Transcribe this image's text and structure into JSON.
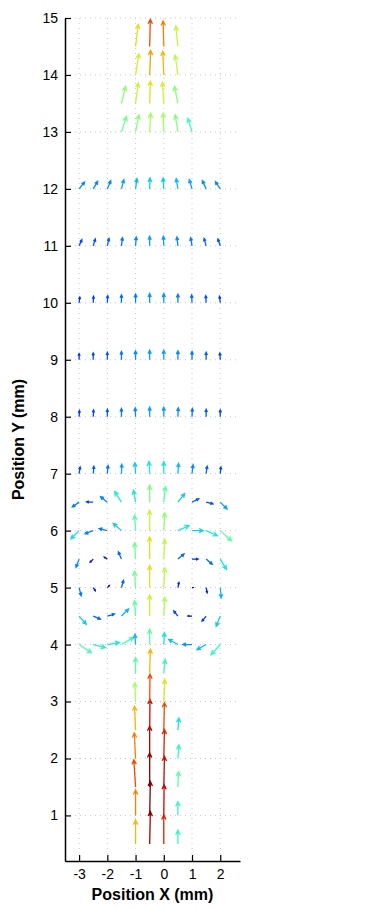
{
  "chart_data": {
    "type": "vector",
    "x_label": "Position X (mm)",
    "y_label": "Position Y (mm)",
    "xlim": [
      -3.5,
      2.7
    ],
    "ylim": [
      0.2,
      15
    ],
    "xticks": [
      -3,
      -2,
      -1,
      0,
      1,
      2
    ],
    "yticks": [
      1,
      2,
      3,
      4,
      5,
      6,
      7,
      8,
      9,
      10,
      11,
      12,
      13,
      14,
      15
    ],
    "grid": true,
    "x": [
      -1,
      -0.5,
      0,
      0.5,
      -1,
      -0.5,
      0,
      0.5,
      -1,
      -0.5,
      0,
      0.5,
      -1,
      -0.5,
      0,
      0.5,
      -1,
      -0.5,
      0,
      0.5,
      -1,
      -0.5,
      0,
      -1,
      -0.5,
      0,
      -3,
      -2.5,
      -2,
      -1.5,
      -1,
      -0.5,
      0,
      0.5,
      1,
      1.5,
      2,
      -3,
      -2.5,
      -2,
      -1.5,
      -1,
      -0.5,
      0,
      0.5,
      1,
      1.5,
      2,
      -3,
      -2.5,
      -2,
      -1.5,
      -1,
      -0.5,
      0,
      0.5,
      1,
      1.5,
      2,
      -3,
      -2.5,
      -2,
      -1.5,
      -1,
      -0.5,
      0,
      0.5,
      1,
      1.5,
      2,
      -3,
      -2.5,
      -2,
      -1.5,
      -1,
      -0.5,
      0,
      0.5,
      1,
      1.5,
      2,
      -3,
      -2.5,
      -2,
      -1.5,
      -1,
      -0.5,
      0,
      0.5,
      1,
      1.5,
      2,
      -3,
      -2.5,
      -2,
      -1.5,
      -1,
      -0.5,
      0,
      0.5,
      1,
      1.5,
      2,
      -3,
      -2.5,
      -2,
      -1.5,
      -1,
      -0.5,
      0,
      0.5,
      1,
      1.5,
      2,
      -3,
      -2.5,
      -2,
      -1.5,
      -1,
      -0.5,
      0,
      0.5,
      1,
      1.5,
      2,
      -3,
      -2.5,
      -2,
      -1.5,
      -1,
      -0.5,
      0,
      0.5,
      1,
      1.5,
      2,
      -3,
      -2.5,
      -2,
      -1.5,
      -1,
      -0.5,
      0,
      0.5,
      1,
      1.5,
      2,
      -3,
      -2.5,
      -2,
      -1.5,
      -1,
      -0.5,
      0,
      0.5,
      1,
      1.5,
      2,
      -1.5,
      -1,
      -0.5,
      0,
      0.5,
      1,
      -1.5,
      -1,
      -0.5,
      0,
      0.5,
      -1,
      -0.5,
      0,
      0.5,
      -1,
      -0.5,
      0,
      0.5
    ],
    "y": [
      0.5,
      0.5,
      0.5,
      0.5,
      1,
      1,
      1,
      1,
      1.5,
      1.5,
      1.5,
      1.5,
      2,
      2,
      2,
      2,
      2.5,
      2.5,
      2.5,
      2.5,
      3,
      3,
      3,
      3.5,
      3.5,
      3.5,
      4,
      4,
      4,
      4,
      4,
      4,
      4,
      4,
      4,
      4,
      4,
      4.5,
      4.5,
      4.5,
      4.5,
      4.5,
      4.5,
      4.5,
      4.5,
      4.5,
      4.5,
      4.5,
      5,
      5,
      5,
      5,
      5,
      5,
      5,
      5,
      5,
      5,
      5,
      5.5,
      5.5,
      5.5,
      5.5,
      5.5,
      5.5,
      5.5,
      5.5,
      5.5,
      5.5,
      5.5,
      6,
      6,
      6,
      6,
      6,
      6,
      6,
      6,
      6,
      6,
      6,
      6.5,
      6.5,
      6.5,
      6.5,
      6.5,
      6.5,
      6.5,
      6.5,
      6.5,
      6.5,
      6.5,
      7,
      7,
      7,
      7,
      7,
      7,
      7,
      7,
      7,
      7,
      7,
      8,
      8,
      8,
      8,
      8,
      8,
      8,
      8,
      8,
      8,
      8,
      9,
      9,
      9,
      9,
      9,
      9,
      9,
      9,
      9,
      9,
      9,
      10,
      10,
      10,
      10,
      10,
      10,
      10,
      10,
      10,
      10,
      10,
      11,
      11,
      11,
      11,
      11,
      11,
      11,
      11,
      11,
      11,
      11,
      12,
      12,
      12,
      12,
      12,
      12,
      12,
      12,
      12,
      12,
      12,
      13,
      13,
      13,
      13,
      13,
      13,
      13.5,
      13.5,
      13.5,
      13.5,
      13.5,
      14,
      14,
      14,
      14,
      14.5,
      14.5,
      14.5,
      14.5
    ],
    "u": [
      0,
      0.02,
      0,
      0,
      0,
      0.02,
      0.01,
      0,
      -0.05,
      0,
      0.02,
      0.02,
      -0.04,
      0,
      0.02,
      0.03,
      -0.03,
      0.01,
      0.02,
      0.03,
      -0.02,
      0.01,
      0.03,
      0,
      0.02,
      0.04,
      0.36,
      0.36,
      0.36,
      0.36,
      -0.02,
      0,
      0.02,
      -0.27,
      -0.27,
      -0.27,
      -0.27,
      0.21,
      0.21,
      0.21,
      0.21,
      -0.03,
      0,
      0.03,
      -0.12,
      -0.12,
      -0.12,
      -0.12,
      0.06,
      0.06,
      0.06,
      0.06,
      -0.03,
      0,
      0.03,
      0.03,
      0.03,
      0.03,
      0.03,
      -0.09,
      -0.09,
      -0.09,
      -0.09,
      -0.03,
      0,
      0.03,
      0.18,
      0.18,
      0.18,
      0.18,
      -0.24,
      -0.24,
      -0.24,
      -0.24,
      -0.03,
      0,
      0.03,
      0.33,
      0.33,
      0.33,
      0.33,
      -0.2,
      -0.2,
      -0.2,
      -0.2,
      -0.06,
      0,
      0.05,
      0.2,
      0.2,
      0.2,
      0.2,
      0.03,
      0.02,
      0.02,
      0.01,
      -0.02,
      -0.02,
      0,
      0.02,
      0.03,
      0.03,
      0.02,
      0.01,
      0.01,
      0,
      0,
      -0.01,
      0,
      0,
      0.01,
      0.01,
      0,
      0,
      0,
      0,
      0,
      0,
      0,
      0,
      0,
      0,
      0,
      0,
      -0.01,
      0.02,
      0.01,
      0.01,
      0,
      0,
      0,
      0,
      0,
      -0.01,
      -0.01,
      -0.02,
      0.08,
      0.06,
      0.05,
      0.03,
      0.02,
      0,
      -0.01,
      -0.03,
      -0.04,
      -0.06,
      -0.07,
      0.16,
      0.13,
      0.1,
      0.07,
      0.04,
      0.01,
      -0.02,
      -0.05,
      -0.08,
      -0.11,
      -0.14,
      0.15,
      0.1,
      0.03,
      -0.02,
      -0.08,
      -0.12,
      0.12,
      0.08,
      0.02,
      -0.04,
      -0.1,
      0.1,
      0.03,
      -0.03,
      -0.08,
      0.08,
      0.02,
      -0.02,
      -0.06
    ],
    "v": [
      0.7,
      0.95,
      0.85,
      0.4,
      0.75,
      1.0,
      0.9,
      0.4,
      0.8,
      1.0,
      0.9,
      0.45,
      0.75,
      0.95,
      0.85,
      0.4,
      0.7,
      0.9,
      0.8,
      0.35,
      0.55,
      0.8,
      0.65,
      0.45,
      0.7,
      0.4,
      -0.24,
      -0.09,
      0.06,
      0.21,
      0.3,
      0.45,
      0.35,
      0.15,
      0,
      -0.15,
      -0.3,
      -0.24,
      -0.09,
      0.06,
      0.21,
      0.45,
      0.62,
      0.55,
      0.15,
      0,
      -0.15,
      -0.3,
      -0.24,
      -0.09,
      0.06,
      0.21,
      0.48,
      0.65,
      0.58,
      0.15,
      0,
      -0.15,
      -0.3,
      -0.24,
      -0.09,
      0.06,
      0.21,
      0.48,
      0.65,
      0.58,
      0.15,
      0,
      -0.15,
      -0.3,
      -0.24,
      -0.09,
      0.06,
      0.21,
      0.45,
      0.6,
      0.52,
      0.15,
      0,
      -0.15,
      -0.3,
      -0.14,
      0.01,
      0.16,
      0.31,
      0.35,
      0.5,
      0.45,
      0.25,
      0.1,
      -0.05,
      -0.2,
      0.2,
      0.22,
      0.24,
      0.28,
      0.32,
      0.36,
      0.35,
      0.3,
      0.26,
      0.22,
      0.2,
      0.18,
      0.2,
      0.22,
      0.24,
      0.26,
      0.28,
      0.28,
      0.26,
      0.24,
      0.22,
      0.2,
      0.18,
      0.2,
      0.22,
      0.24,
      0.26,
      0.28,
      0.28,
      0.26,
      0.24,
      0.22,
      0.2,
      0.17,
      0.19,
      0.21,
      0.23,
      0.25,
      0.27,
      0.27,
      0.25,
      0.23,
      0.21,
      0.19,
      0.18,
      0.2,
      0.22,
      0.24,
      0.26,
      0.28,
      0.28,
      0.26,
      0.24,
      0.22,
      0.2,
      0.2,
      0.22,
      0.24,
      0.27,
      0.3,
      0.32,
      0.32,
      0.3,
      0.27,
      0.24,
      0.21,
      0.45,
      0.5,
      0.55,
      0.55,
      0.5,
      0.4,
      0.5,
      0.6,
      0.65,
      0.62,
      0.5,
      0.62,
      0.72,
      0.7,
      0.58,
      0.65,
      0.8,
      0.75,
      0.6
    ]
  }
}
